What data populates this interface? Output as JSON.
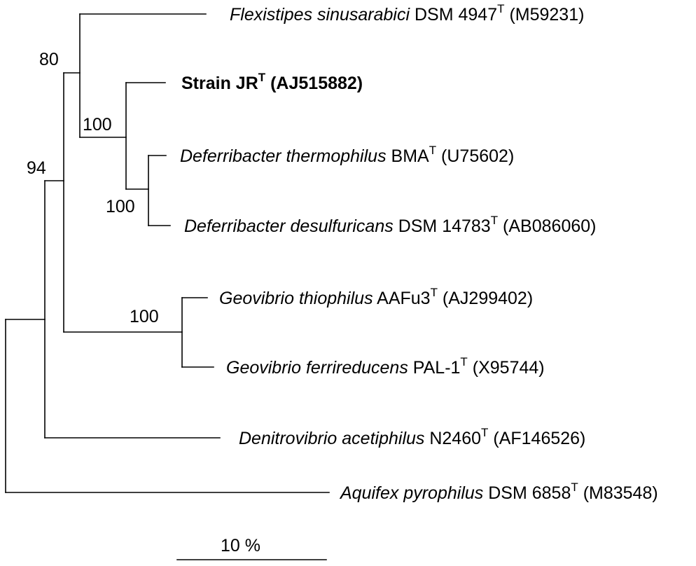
{
  "taxa": {
    "flexistipes": {
      "genus_species": "Flexistipes sinusarabici",
      "strain": " DSM 4947",
      "type_mark": "T",
      "accession": " (M59231)"
    },
    "strain_jr": {
      "strain": "Strain JR",
      "type_mark": "T",
      "accession": " (AJ515882)"
    },
    "d_thermophilus": {
      "genus_species": "Deferribacter thermophilus",
      "strain": " BMA",
      "type_mark": "T",
      "accession": " (U75602)"
    },
    "d_desulfuricans": {
      "genus_species": "Deferribacter desulfuricans",
      "strain": " DSM 14783",
      "type_mark": "T",
      "accession": " (AB086060)"
    },
    "g_thiophilus": {
      "genus_species": "Geovibrio thiophilus",
      "strain": " AAFu3",
      "type_mark": "T",
      "accession": " (AJ299402)"
    },
    "g_ferrireducens": {
      "genus_species": "Geovibrio ferrireducens",
      "strain": " PAL-1",
      "type_mark": "T",
      "accession": " (X95744)"
    },
    "denitrovibrio": {
      "genus_species": "Denitrovibrio acetiphilus",
      "strain": " N2460",
      "type_mark": "T",
      "accession": " (AF146526)"
    },
    "aquifex": {
      "genus_species": "Aquifex pyrophilus",
      "strain": " DSM 6858",
      "type_mark": "T",
      "accession": " (M83548)"
    }
  },
  "bootstrap": {
    "flexistipes_group": "80",
    "jr_deferribacter": "100",
    "deferribacter_pair": "100",
    "upper_group": "94",
    "geovibrio_pair": "100"
  },
  "scale": {
    "label": "10 %"
  }
}
